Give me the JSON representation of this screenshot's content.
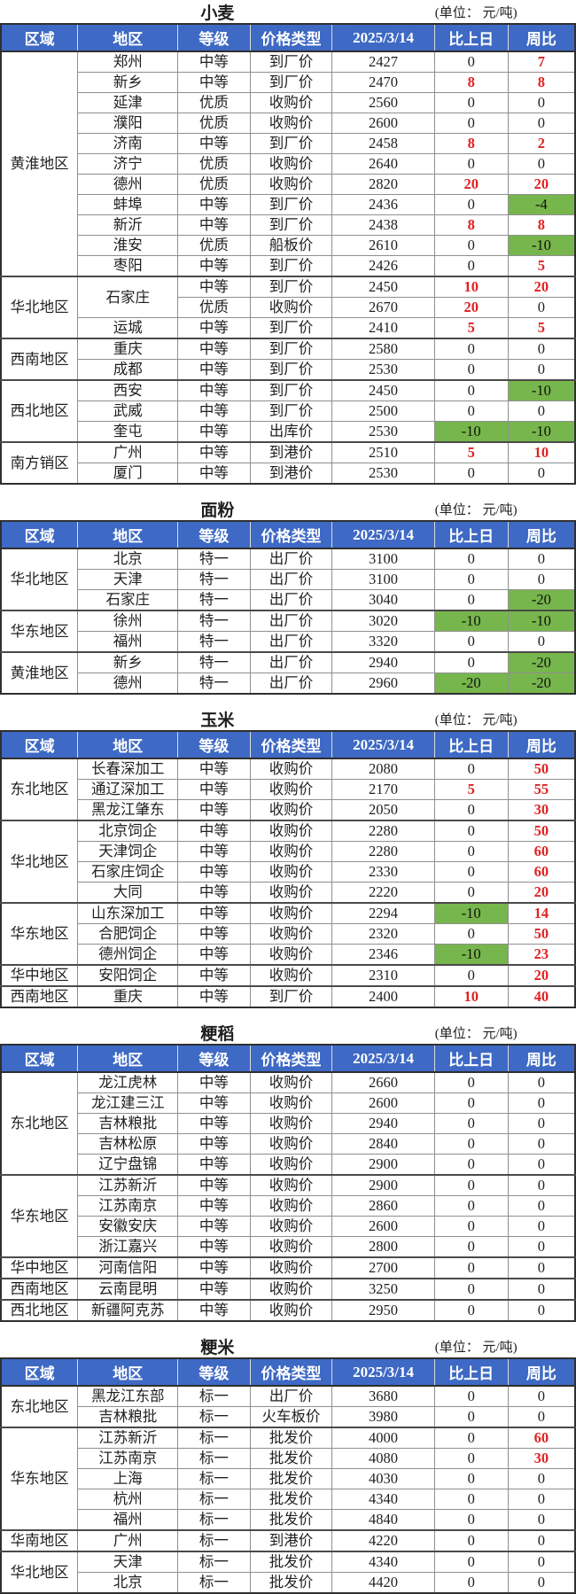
{
  "unit_label": "(单位： 元/吨)",
  "columns": [
    "区域",
    "地区",
    "等级",
    "价格类型",
    "2025/3/14",
    "比上日",
    "周比"
  ],
  "column_widths_pct": [
    13.4,
    17.4,
    12.6,
    14.3,
    17.8,
    12.8,
    11.7
  ],
  "colors": {
    "header_bg": "#3e69c4",
    "header_text": "#ffffff",
    "positive_text": "#e02222",
    "negative_bg": "#77b64c",
    "body_text": "#1f1f1f"
  },
  "sections": [
    {
      "title": "小麦",
      "groups": [
        {
          "region": "黄淮地区",
          "rows": [
            {
              "area": "郑州",
              "grade": "中等",
              "type": "到厂价",
              "price": "2427",
              "day": "0",
              "week": "7"
            },
            {
              "area": "新乡",
              "grade": "中等",
              "type": "到厂价",
              "price": "2470",
              "day": "8",
              "week": "8"
            },
            {
              "area": "延津",
              "grade": "优质",
              "type": "收购价",
              "price": "2560",
              "day": "0",
              "week": "0"
            },
            {
              "area": "濮阳",
              "grade": "优质",
              "type": "收购价",
              "price": "2600",
              "day": "0",
              "week": "0"
            },
            {
              "area": "济南",
              "grade": "中等",
              "type": "到厂价",
              "price": "2458",
              "day": "8",
              "week": "2"
            },
            {
              "area": "济宁",
              "grade": "优质",
              "type": "收购价",
              "price": "2640",
              "day": "0",
              "week": "0"
            },
            {
              "area": "德州",
              "grade": "优质",
              "type": "收购价",
              "price": "2820",
              "day": "20",
              "week": "20"
            },
            {
              "area": "蚌埠",
              "grade": "中等",
              "type": "到厂价",
              "price": "2436",
              "day": "0",
              "week": "-4"
            },
            {
              "area": "新沂",
              "grade": "中等",
              "type": "到厂价",
              "price": "2438",
              "day": "8",
              "week": "8"
            },
            {
              "area": "淮安",
              "grade": "优质",
              "type": "船板价",
              "price": "2610",
              "day": "0",
              "week": "-10"
            },
            {
              "area": "枣阳",
              "grade": "中等",
              "type": "到厂价",
              "price": "2426",
              "day": "0",
              "week": "5"
            }
          ]
        },
        {
          "region": "华北地区",
          "rows": [
            {
              "area": "石家庄",
              "area_span": 2,
              "grade": "中等",
              "type": "到厂价",
              "price": "2450",
              "day": "10",
              "week": "20"
            },
            {
              "area": null,
              "grade": "优质",
              "type": "收购价",
              "price": "2670",
              "day": "20",
              "week": "0"
            },
            {
              "area": "运城",
              "grade": "中等",
              "type": "到厂价",
              "price": "2410",
              "day": "5",
              "week": "5"
            }
          ]
        },
        {
          "region": "西南地区",
          "rows": [
            {
              "area": "重庆",
              "grade": "中等",
              "type": "到厂价",
              "price": "2580",
              "day": "0",
              "week": "0"
            },
            {
              "area": "成都",
              "grade": "中等",
              "type": "到厂价",
              "price": "2530",
              "day": "0",
              "week": "0"
            }
          ]
        },
        {
          "region": "西北地区",
          "rows": [
            {
              "area": "西安",
              "grade": "中等",
              "type": "到厂价",
              "price": "2450",
              "day": "0",
              "week": "-10"
            },
            {
              "area": "武威",
              "grade": "中等",
              "type": "到厂价",
              "price": "2500",
              "day": "0",
              "week": "0"
            },
            {
              "area": "奎屯",
              "grade": "中等",
              "type": "出库价",
              "price": "2530",
              "day": "-10",
              "week": "-10"
            }
          ]
        },
        {
          "region": "南方销区",
          "rows": [
            {
              "area": "广州",
              "grade": "中等",
              "type": "到港价",
              "price": "2510",
              "day": "5",
              "week": "10"
            },
            {
              "area": "厦门",
              "grade": "中等",
              "type": "到港价",
              "price": "2530",
              "day": "0",
              "week": "0"
            }
          ]
        }
      ]
    },
    {
      "title": "面粉",
      "groups": [
        {
          "region": "华北地区",
          "rows": [
            {
              "area": "北京",
              "grade": "特一",
              "type": "出厂价",
              "price": "3100",
              "day": "0",
              "week": "0"
            },
            {
              "area": "天津",
              "grade": "特一",
              "type": "出厂价",
              "price": "3100",
              "day": "0",
              "week": "0"
            },
            {
              "area": "石家庄",
              "grade": "特一",
              "type": "出厂价",
              "price": "3040",
              "day": "0",
              "week": "-20"
            }
          ]
        },
        {
          "region": "华东地区",
          "rows": [
            {
              "area": "徐州",
              "grade": "特一",
              "type": "出厂价",
              "price": "3020",
              "day": "-10",
              "week": "-10"
            },
            {
              "area": "福州",
              "grade": "特一",
              "type": "出厂价",
              "price": "3320",
              "day": "0",
              "week": "0"
            }
          ]
        },
        {
          "region": "黄淮地区",
          "rows": [
            {
              "area": "新乡",
              "grade": "特一",
              "type": "出厂价",
              "price": "2940",
              "day": "0",
              "week": "-20"
            },
            {
              "area": "德州",
              "grade": "特一",
              "type": "出厂价",
              "price": "2960",
              "day": "-20",
              "week": "-20"
            }
          ]
        }
      ]
    },
    {
      "title": "玉米",
      "groups": [
        {
          "region": "东北地区",
          "rows": [
            {
              "area": "长春深加工",
              "grade": "中等",
              "type": "收购价",
              "price": "2080",
              "day": "0",
              "week": "50"
            },
            {
              "area": "通辽深加工",
              "grade": "中等",
              "type": "收购价",
              "price": "2170",
              "day": "5",
              "week": "55"
            },
            {
              "area": "黑龙江肇东",
              "grade": "中等",
              "type": "收购价",
              "price": "2050",
              "day": "0",
              "week": "30"
            }
          ]
        },
        {
          "region": "华北地区",
          "rows": [
            {
              "area": "北京饲企",
              "grade": "中等",
              "type": "收购价",
              "price": "2280",
              "day": "0",
              "week": "50"
            },
            {
              "area": "天津饲企",
              "grade": "中等",
              "type": "收购价",
              "price": "2280",
              "day": "0",
              "week": "60"
            },
            {
              "area": "石家庄饲企",
              "grade": "中等",
              "type": "收购价",
              "price": "2330",
              "day": "0",
              "week": "60"
            },
            {
              "area": "大同",
              "grade": "中等",
              "type": "收购价",
              "price": "2220",
              "day": "0",
              "week": "20"
            }
          ]
        },
        {
          "region": "华东地区",
          "rows": [
            {
              "area": "山东深加工",
              "grade": "中等",
              "type": "收购价",
              "price": "2294",
              "day": "-10",
              "week": "14"
            },
            {
              "area": "合肥饲企",
              "grade": "中等",
              "type": "收购价",
              "price": "2320",
              "day": "0",
              "week": "50"
            },
            {
              "area": "德州饲企",
              "grade": "中等",
              "type": "收购价",
              "price": "2346",
              "day": "-10",
              "week": "23"
            }
          ]
        },
        {
          "region": "华中地区",
          "rows": [
            {
              "area": "安阳饲企",
              "grade": "中等",
              "type": "收购价",
              "price": "2310",
              "day": "0",
              "week": "20"
            }
          ]
        },
        {
          "region": "西南地区",
          "rows": [
            {
              "area": "重庆",
              "grade": "中等",
              "type": "到厂价",
              "price": "2400",
              "day": "10",
              "week": "40"
            }
          ]
        }
      ]
    },
    {
      "title": "粳稻",
      "groups": [
        {
          "region": "东北地区",
          "rows": [
            {
              "area": "龙江虎林",
              "grade": "中等",
              "type": "收购价",
              "price": "2660",
              "day": "0",
              "week": "0"
            },
            {
              "area": "龙江建三江",
              "grade": "中等",
              "type": "收购价",
              "price": "2600",
              "day": "0",
              "week": "0"
            },
            {
              "area": "吉林粮批",
              "grade": "中等",
              "type": "收购价",
              "price": "2940",
              "day": "0",
              "week": "0"
            },
            {
              "area": "吉林松原",
              "grade": "中等",
              "type": "收购价",
              "price": "2840",
              "day": "0",
              "week": "0"
            },
            {
              "area": "辽宁盘锦",
              "grade": "中等",
              "type": "收购价",
              "price": "2900",
              "day": "0",
              "week": "0"
            }
          ]
        },
        {
          "region": "华东地区",
          "rows": [
            {
              "area": "江苏新沂",
              "grade": "中等",
              "type": "收购价",
              "price": "2900",
              "day": "0",
              "week": "0"
            },
            {
              "area": "江苏南京",
              "grade": "中等",
              "type": "收购价",
              "price": "2860",
              "day": "0",
              "week": "0"
            },
            {
              "area": "安徽安庆",
              "grade": "中等",
              "type": "收购价",
              "price": "2600",
              "day": "0",
              "week": "0"
            },
            {
              "area": "浙江嘉兴",
              "grade": "中等",
              "type": "收购价",
              "price": "2800",
              "day": "0",
              "week": "0"
            }
          ]
        },
        {
          "region": "华中地区",
          "rows": [
            {
              "area": "河南信阳",
              "grade": "中等",
              "type": "收购价",
              "price": "2700",
              "day": "0",
              "week": "0"
            }
          ]
        },
        {
          "region": "西南地区",
          "rows": [
            {
              "area": "云南昆明",
              "grade": "中等",
              "type": "收购价",
              "price": "3250",
              "day": "0",
              "week": "0"
            }
          ]
        },
        {
          "region": "西北地区",
          "rows": [
            {
              "area": "新疆阿克苏",
              "grade": "中等",
              "type": "收购价",
              "price": "2950",
              "day": "0",
              "week": "0"
            }
          ]
        }
      ]
    },
    {
      "title": "粳米",
      "groups": [
        {
          "region": "东北地区",
          "rows": [
            {
              "area": "黑龙江东部",
              "grade": "标一",
              "type": "出厂价",
              "price": "3680",
              "day": "0",
              "week": "0"
            },
            {
              "area": "吉林粮批",
              "grade": "标一",
              "type": "火车板价",
              "price": "3980",
              "day": "0",
              "week": "0"
            }
          ]
        },
        {
          "region": "华东地区",
          "rows": [
            {
              "area": "江苏新沂",
              "grade": "标一",
              "type": "批发价",
              "price": "4000",
              "day": "0",
              "week": "60"
            },
            {
              "area": "江苏南京",
              "grade": "标一",
              "type": "批发价",
              "price": "4080",
              "day": "0",
              "week": "30"
            },
            {
              "area": "上海",
              "grade": "标一",
              "type": "批发价",
              "price": "4030",
              "day": "0",
              "week": "0"
            },
            {
              "area": "杭州",
              "grade": "标一",
              "type": "批发价",
              "price": "4340",
              "day": "0",
              "week": "0"
            },
            {
              "area": "福州",
              "grade": "标一",
              "type": "批发价",
              "price": "4840",
              "day": "0",
              "week": "0"
            }
          ]
        },
        {
          "region": "华南地区",
          "rows": [
            {
              "area": "广州",
              "grade": "标一",
              "type": "到港价",
              "price": "4220",
              "day": "0",
              "week": "0"
            }
          ]
        },
        {
          "region": "华北地区",
          "rows": [
            {
              "area": "天津",
              "grade": "标一",
              "type": "批发价",
              "price": "4340",
              "day": "0",
              "week": "0"
            },
            {
              "area": "北京",
              "grade": "标一",
              "type": "批发价",
              "price": "4420",
              "day": "0",
              "week": "0"
            }
          ]
        }
      ]
    }
  ]
}
